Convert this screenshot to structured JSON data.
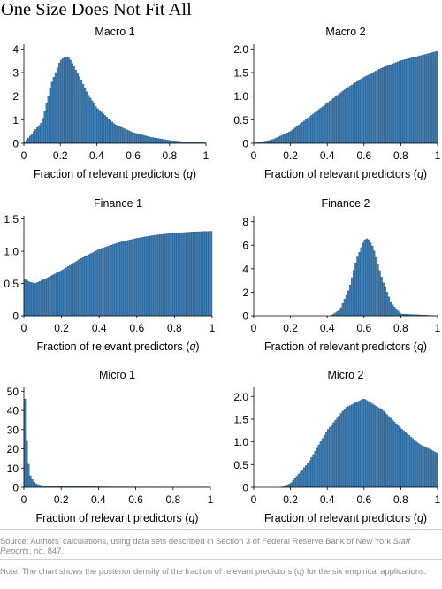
{
  "title": "One Size Does Not Fit All",
  "source": {
    "before": "Source: Authors’ calculations, using data sets described in Section 3 of Federal Reserve Bank of New York ",
    "italic": "Staff Reports",
    "after": ", no. 847."
  },
  "note": "Note: The chart shows the posterior density of the fraction of relevant predictors (q) for the six empirical applications.",
  "colors": {
    "bar_fill": "#3f7fb6",
    "bar_edge": "#24496b",
    "axis": "#000000"
  },
  "chart_data": [
    {
      "type": "bar",
      "title": "Macro 1",
      "xlabel": "Fraction of relevant predictors (q)",
      "xlim": [
        0,
        1
      ],
      "ylim": [
        0,
        4.2
      ],
      "xticks": [
        "0",
        "0.2",
        "0.4",
        "0.6",
        "0.8",
        "1"
      ],
      "yticks": [
        0,
        1,
        2,
        3,
        4
      ],
      "x": [
        0.0,
        0.1,
        0.15,
        0.2,
        0.23,
        0.25,
        0.3,
        0.35,
        0.4,
        0.5,
        0.6,
        0.7,
        0.8,
        0.9,
        1.0
      ],
      "values": [
        0.0,
        0.9,
        2.5,
        3.5,
        3.7,
        3.6,
        2.9,
        2.1,
        1.5,
        0.8,
        0.45,
        0.25,
        0.12,
        0.05,
        0.02
      ]
    },
    {
      "type": "bar",
      "title": "Macro 2",
      "xlabel": "Fraction of relevant predictors (q)",
      "xlim": [
        0,
        1
      ],
      "ylim": [
        0,
        2.1
      ],
      "xticks": [
        "0",
        "0.2",
        "0.4",
        "0.6",
        "0.8",
        "1"
      ],
      "yticks": [
        "0",
        "0.5",
        "1.0",
        "1.5",
        "2.0"
      ],
      "x": [
        0.0,
        0.1,
        0.2,
        0.3,
        0.4,
        0.5,
        0.6,
        0.7,
        0.8,
        0.9,
        1.0
      ],
      "values": [
        0.0,
        0.07,
        0.25,
        0.55,
        0.85,
        1.15,
        1.4,
        1.6,
        1.75,
        1.85,
        1.95
      ]
    },
    {
      "type": "bar",
      "title": "Finance 1",
      "xlabel": "Fraction of relevant predictors (q)",
      "xlim": [
        0,
        1
      ],
      "ylim": [
        0,
        1.55
      ],
      "xticks": [
        "0",
        "0.2",
        "0.4",
        "0.6",
        "0.8",
        "1"
      ],
      "yticks": [
        "0",
        "0.5",
        "1.0",
        "1.5"
      ],
      "x": [
        0.0,
        0.03,
        0.06,
        0.1,
        0.2,
        0.3,
        0.4,
        0.5,
        0.6,
        0.7,
        0.8,
        0.9,
        1.0
      ],
      "values": [
        0.58,
        0.52,
        0.5,
        0.55,
        0.7,
        0.88,
        1.03,
        1.13,
        1.2,
        1.25,
        1.28,
        1.3,
        1.31
      ]
    },
    {
      "type": "bar",
      "title": "Finance 2",
      "xlabel": "Fraction of relevant predictors (q)",
      "xlim": [
        0,
        1
      ],
      "ylim": [
        0,
        8.5
      ],
      "xticks": [
        "0",
        "0.2",
        "0.4",
        "0.6",
        "0.8",
        "1"
      ],
      "yticks": [
        0,
        2,
        4,
        6,
        8
      ],
      "x": [
        0.0,
        0.42,
        0.47,
        0.52,
        0.56,
        0.6,
        0.62,
        0.65,
        0.7,
        0.75,
        0.8,
        1.0
      ],
      "values": [
        0.0,
        0.0,
        0.5,
        2.3,
        4.8,
        6.4,
        6.6,
        5.8,
        3.0,
        1.0,
        0.15,
        0.0
      ]
    },
    {
      "type": "bar",
      "title": "Micro 1",
      "xlabel": "Fraction of relevant predictors (q)",
      "xlim": [
        0,
        1
      ],
      "ylim": [
        0,
        52
      ],
      "xticks": [
        "0",
        "0.2",
        "0.4",
        "0.6",
        "0.8",
        "1"
      ],
      "yticks": [
        0,
        10,
        20,
        30,
        40,
        50
      ],
      "x": [
        0.0,
        0.005,
        0.015,
        0.025,
        0.035,
        0.05,
        0.07,
        0.1,
        0.2,
        0.5,
        1.0
      ],
      "values": [
        48,
        46,
        24,
        12,
        6,
        3,
        1.5,
        0.8,
        0.4,
        0.2,
        0.1
      ]
    },
    {
      "type": "bar",
      "title": "Micro 2",
      "xlabel": "Fraction of relevant predictors (q)",
      "xlim": [
        0,
        1
      ],
      "ylim": [
        0,
        2.2
      ],
      "xticks": [
        "0",
        "0.2",
        "0.4",
        "0.6",
        "0.8",
        "1"
      ],
      "yticks": [
        "0",
        "0.5",
        "1.0",
        "1.5",
        "2.0"
      ],
      "x": [
        0.0,
        0.15,
        0.2,
        0.3,
        0.4,
        0.5,
        0.6,
        0.7,
        0.8,
        0.9,
        1.0
      ],
      "values": [
        0.0,
        0.0,
        0.08,
        0.55,
        1.25,
        1.75,
        1.95,
        1.7,
        1.3,
        0.95,
        0.75
      ]
    }
  ]
}
